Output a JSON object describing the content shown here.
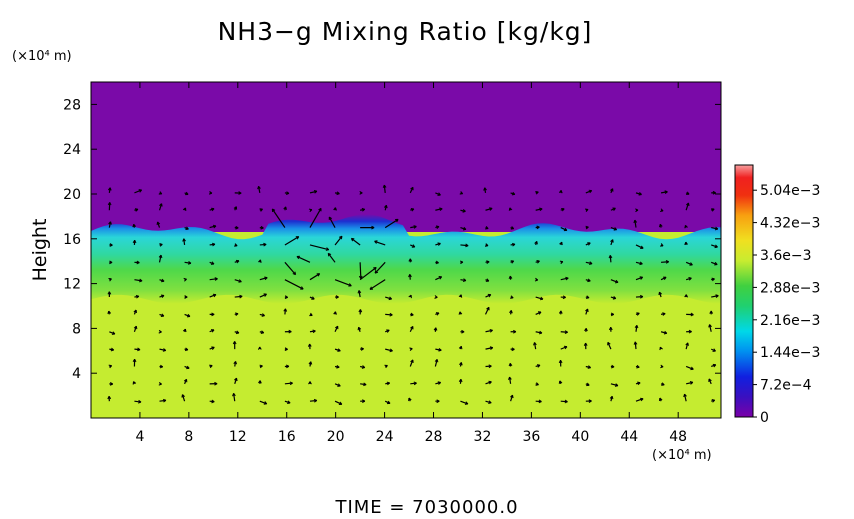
{
  "chart_data": {
    "type": "heatmap",
    "title": "NH3−g Mixing Ratio [kg/kg]",
    "ylabel": "Height",
    "y_unit_label": "(×10⁴ m)",
    "x_unit_label": "(×10⁴ m)",
    "xlim": [
      0,
      51.5
    ],
    "ylim": [
      0,
      30
    ],
    "x_ticks": [
      "4",
      "8",
      "12",
      "16",
      "20",
      "24",
      "28",
      "32",
      "36",
      "40",
      "44",
      "48"
    ],
    "x_tick_values": [
      4,
      8,
      12,
      16,
      20,
      24,
      28,
      32,
      36,
      40,
      44,
      48
    ],
    "y_ticks": [
      "4",
      "8",
      "12",
      "16",
      "20",
      "24",
      "28"
    ],
    "y_tick_values": [
      4,
      8,
      12,
      16,
      20,
      24,
      28
    ],
    "colorbar": {
      "labels": [
        "5.04e−3",
        "4.32e−3",
        "3.6e−3",
        "2.88e−3",
        "2.16e−3",
        "1.44e−3",
        "7.2e−4",
        "0"
      ],
      "label_values": [
        0.00504,
        0.00432,
        0.0036,
        0.00288,
        0.00216,
        0.00144,
        0.00072,
        0
      ],
      "range": [
        0,
        0.0056
      ]
    },
    "regions": [
      {
        "name": "upper layer",
        "y_from": 16.5,
        "y_to": 30,
        "value": 0,
        "color": "#7a0aa8"
      },
      {
        "name": "transition band",
        "y_from": 15.5,
        "y_to": 17,
        "value": 0.0008,
        "color": "#1d2fd0"
      },
      {
        "name": "cyan band",
        "y_from": 13.5,
        "y_to": 16,
        "value": 0.0017,
        "color": "#2ad6d8"
      },
      {
        "name": "green band",
        "y_from": 10.5,
        "y_to": 14,
        "value": 0.0029,
        "color": "#4ed84a"
      },
      {
        "name": "lower layer",
        "y_from": 0,
        "y_to": 10.5,
        "value": 0.0033,
        "color": "#c5ec30"
      }
    ],
    "vectors": "wind vector field overlay (arrows)",
    "footer": "TIME  =  7030000.0"
  }
}
